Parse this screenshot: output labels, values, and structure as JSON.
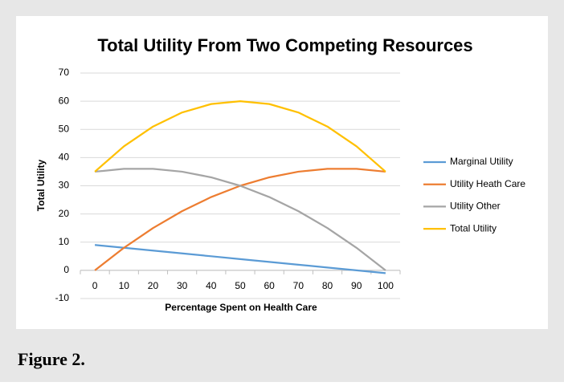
{
  "chart_data": {
    "type": "line",
    "title": "Total Utility From Two Competing Resources",
    "x_label": "Percentage Spent on Health Care",
    "y_label": "Total Utility",
    "caption": "Figure 2.",
    "categories": [
      "0",
      "10",
      "20",
      "30",
      "40",
      "50",
      "60",
      "70",
      "80",
      "90",
      "100"
    ],
    "series": [
      {
        "name": "Marginal Utility",
        "color": "#5b9bd5",
        "values": [
          9,
          8,
          7,
          6,
          5,
          4,
          3,
          2,
          1,
          0,
          -1
        ]
      },
      {
        "name": "Utility Heath Care",
        "color": "#ed7d31",
        "values": [
          0,
          8,
          15,
          21,
          26,
          30,
          33,
          35,
          36,
          36,
          35
        ]
      },
      {
        "name": "Utility Other",
        "color": "#a5a5a5",
        "values": [
          35,
          36,
          36,
          35,
          33,
          30,
          26,
          21,
          15,
          8,
          0
        ]
      },
      {
        "name": "Total Utility",
        "color": "#ffc000",
        "values": [
          35,
          44,
          51,
          56,
          59,
          60,
          59,
          56,
          51,
          44,
          35
        ]
      }
    ],
    "ylim": [
      -10,
      70
    ],
    "yticks": [
      -10,
      0,
      10,
      20,
      30,
      40,
      50,
      60,
      70
    ],
    "grid": true,
    "legend": "right"
  }
}
